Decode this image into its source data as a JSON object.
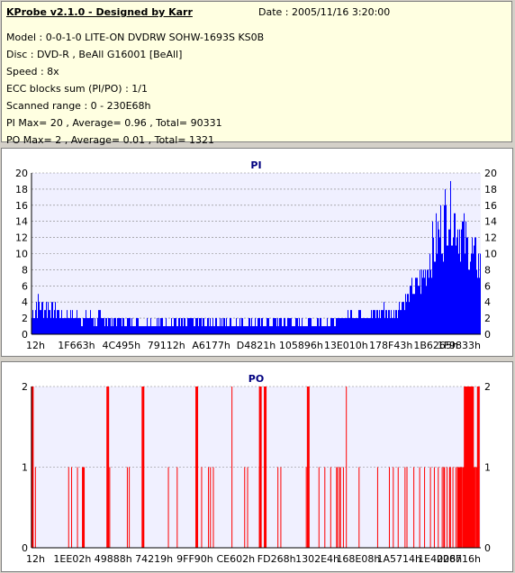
{
  "header": {
    "title": "KProbe v2.1.0 - Designed by Karr",
    "date": "Date : 2005/11/16 3:20:00",
    "lines": [
      "Model : 0-0-1-0 LITE-ON DVDRW SOHW-1693S KS0B",
      "Disc : DVD-R , BeAll G16001 [BeAll]",
      "Speed : 8x",
      "ECC blocks sum (PI/PO) : 1/1",
      "Scanned range : 0 - 230E68h",
      "PI Max= 20 , Average= 0.96 , Total= 90331",
      "PO Max= 2 , Average= 0.01 , Total= 1321"
    ]
  },
  "colors": {
    "panel_bg": "#d4d0c8",
    "info_bg": "#ffffe1",
    "plot_bg": "#f0f0ff",
    "pi_series": "#0000ff",
    "po_series": "#ff0000",
    "title_color": "#000080",
    "grid": "#808080"
  },
  "chart_data": [
    {
      "type": "bar",
      "title": "PI",
      "ylim": [
        0,
        20
      ],
      "yticks": [
        0,
        2,
        4,
        6,
        8,
        10,
        12,
        14,
        16,
        18,
        20
      ],
      "xticks": [
        "12h",
        "1F663h",
        "4C495h",
        "79112h",
        "A6177h",
        "D4821h",
        "105896h",
        "13E010h",
        "178F43h",
        "1B6265h",
        "1F9833h"
      ],
      "xlim": [
        0,
        2297448
      ],
      "grid": true,
      "series": [
        {
          "color": "#0000ff",
          "x": [
            0,
            30000,
            60000,
            90000,
            150000,
            300000,
            500000,
            700000,
            900000,
            1100000,
            1300000,
            1500000,
            1650000,
            1750000,
            1800000,
            1850000,
            1900000,
            1950000,
            2000000,
            2050000,
            2100000,
            2130000,
            2160000,
            2190000,
            2220000,
            2250000,
            2280000,
            2297448
          ],
          "y": [
            4,
            6,
            4,
            5,
            3,
            3,
            2,
            2,
            2,
            2,
            2,
            2,
            3,
            3,
            4,
            3,
            5,
            7,
            9,
            14,
            18,
            20,
            18,
            17,
            15,
            13,
            12,
            11
          ],
          "base": [
            1,
            2,
            2,
            2,
            2,
            1,
            1,
            1,
            1,
            1,
            1,
            1,
            2,
            2,
            2,
            2,
            3,
            4,
            5,
            7,
            9,
            11,
            10,
            9,
            8,
            7,
            6,
            5
          ]
        }
      ]
    },
    {
      "type": "bar",
      "title": "PO",
      "ylim": [
        0,
        2
      ],
      "yticks": [
        0,
        1,
        2
      ],
      "xticks": [
        "12h",
        "1EE02h",
        "49888h",
        "74219h",
        "9FF90h",
        "CE602h",
        "FD268h",
        "1302E4h",
        "168E08h",
        "1A5714h",
        "1E4006h",
        "228716h"
      ],
      "xlim": [
        0,
        2297448
      ],
      "grid": true,
      "series": [
        {
          "color": "#ff0000",
          "x": [
            4000,
            20000,
            190000,
            205000,
            235000,
            265000,
            390000,
            400000,
            490000,
            500000,
            570000,
            700000,
            745000,
            845000,
            870000,
            905000,
            915000,
            930000,
            1025000,
            1090000,
            1105000,
            1165000,
            1170000,
            1195000,
            1260000,
            1275000,
            1405000,
            1415000,
            1470000,
            1500000,
            1530000,
            1560000,
            1565000,
            1575000,
            1580000,
            1595000,
            1610000,
            1675000,
            1770000,
            1830000,
            1850000,
            1875000,
            1910000,
            1920000,
            1955000,
            1985000,
            2010000,
            2040000,
            2060000,
            2080000,
            2100000,
            2110000,
            2125000,
            2140000,
            2155000,
            2170000,
            2180000,
            2190000,
            2200000,
            2210000,
            2220000,
            2232000,
            2245000,
            2255000,
            2265000,
            2275000,
            2285000
          ],
          "y": [
            2,
            1,
            1,
            1,
            1,
            1,
            2,
            1,
            1,
            1,
            2,
            1,
            1,
            2,
            1,
            1,
            1,
            1,
            2,
            1,
            1,
            1,
            2,
            2,
            1,
            1,
            1,
            2,
            1,
            1,
            1,
            1,
            1,
            1,
            1,
            1,
            2,
            1,
            1,
            1,
            1,
            1,
            1,
            1,
            1,
            1,
            1,
            1,
            1,
            1,
            1,
            1,
            1,
            1,
            1,
            1,
            1,
            1,
            1,
            1,
            2,
            2,
            2,
            2,
            1,
            1,
            2
          ],
          "width": [
            3,
            1,
            1,
            1,
            1,
            3,
            3,
            1,
            1,
            1,
            3,
            1,
            1,
            3,
            1,
            1,
            1,
            1,
            1,
            1,
            1,
            1,
            3,
            3,
            1,
            1,
            1,
            3,
            1,
            1,
            1,
            1,
            1,
            1,
            1,
            1,
            1,
            1,
            1,
            1,
            1,
            1,
            1,
            1,
            1,
            1,
            1,
            1,
            1,
            1,
            1,
            2,
            1,
            2,
            1,
            1,
            2,
            3,
            2,
            2,
            4,
            4,
            4,
            3,
            2,
            2,
            3
          ]
        }
      ]
    }
  ]
}
